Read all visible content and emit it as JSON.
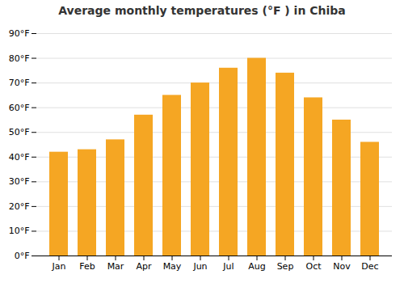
{
  "chart_data": {
    "type": "bar",
    "title": "Average monthly temperatures (°F ) in Chiba",
    "categories": [
      "Jan",
      "Feb",
      "Mar",
      "Apr",
      "May",
      "Jun",
      "Jul",
      "Aug",
      "Sep",
      "Oct",
      "Nov",
      "Dec"
    ],
    "values": [
      42,
      43,
      47,
      57,
      65,
      70,
      76,
      80,
      74,
      64,
      55,
      46
    ],
    "color": "#F5A623",
    "ylim": [
      0,
      90
    ],
    "yticks": [
      {
        "value": 0,
        "label": "0°F"
      },
      {
        "value": 10,
        "label": "10°F"
      },
      {
        "value": 20,
        "label": "20°F"
      },
      {
        "value": 30,
        "label": "30°F"
      },
      {
        "value": 40,
        "label": "40°F"
      },
      {
        "value": 50,
        "label": "50°F"
      },
      {
        "value": 60,
        "label": "60°F"
      },
      {
        "value": 70,
        "label": "70°F"
      },
      {
        "value": 80,
        "label": "80°F"
      },
      {
        "value": 90,
        "label": "90°F"
      }
    ],
    "grid": true
  }
}
